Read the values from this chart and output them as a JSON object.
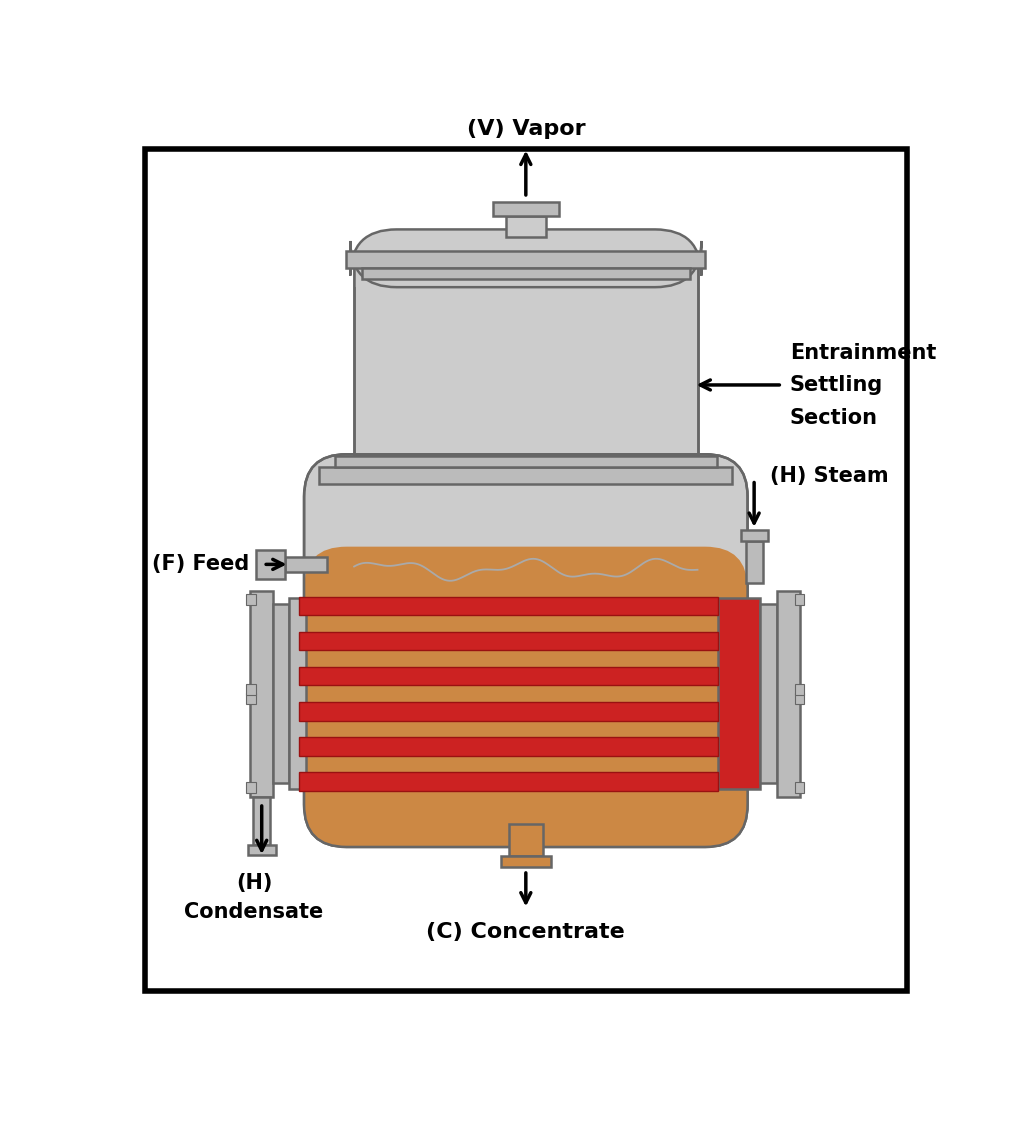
{
  "background_color": "#ffffff",
  "border_color": "#000000",
  "vessel_color": "#cccccc",
  "vessel_outline": "#666666",
  "liquid_color": "#cc8844",
  "tube_color": "#cc2222",
  "steam_box_color": "#cc2222",
  "flange_color": "#bbbbbb",
  "concentrate_nozzle_color": "#cc8844",
  "labels": {
    "vapor": "(V) Vapor",
    "feed": "(F) Feed",
    "steam": "(H) Steam",
    "condensate_line1": "(H)",
    "condensate_line2": "Condensate",
    "concentrate": "(C) Concentrate",
    "entrainment_line1": "Entrainment",
    "entrainment_line2": "Settling",
    "entrainment_line3": "Section"
  },
  "font_size": 15,
  "arrow_color": "#000000"
}
